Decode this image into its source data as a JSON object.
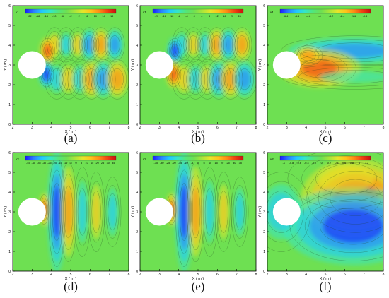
{
  "panels": [
    {
      "caption": "(a)",
      "colorbar_title": "v1",
      "colorbar_ticks": [
        "-22",
        "-18",
        "-14",
        "-10",
        "-6",
        "-2",
        "2",
        "6",
        "10",
        "14",
        "18"
      ],
      "xlabel": "X ( m )",
      "ylabel": "Y ( m )",
      "xticks": [
        "2",
        "3",
        "4",
        "5",
        "6",
        "7",
        "8"
      ],
      "yticks": [
        "0",
        "1",
        "2",
        "3",
        "4",
        "5",
        "6"
      ],
      "field": "wake-blobs"
    },
    {
      "caption": "(b)",
      "colorbar_title": "v1",
      "colorbar_ticks": [
        "-20",
        "-16",
        "-12",
        "-8",
        "-4",
        "0",
        "4",
        "8",
        "12",
        "16",
        "20",
        "24"
      ],
      "xlabel": "X ( m )",
      "ylabel": "Y ( m )",
      "xticks": [
        "2",
        "3",
        "4",
        "5",
        "6",
        "7",
        "8"
      ],
      "yticks": [
        "0",
        "1",
        "2",
        "3",
        "4",
        "5",
        "6"
      ],
      "field": "wake-blobs-b"
    },
    {
      "caption": "(c)",
      "colorbar_title": "v1",
      "colorbar_ticks": [
        "-6.4",
        "-5.6",
        "-4.8",
        "-4",
        "-3.2",
        "-2.4",
        "-1.6",
        "-0.8"
      ],
      "xlabel": "X ( m )",
      "ylabel": "Y ( m )",
      "xticks": [
        "2",
        "3",
        "4",
        "5",
        "6",
        "7",
        "8"
      ],
      "yticks": [
        "0",
        "1",
        "2",
        "3",
        "4",
        "5",
        "6"
      ],
      "field": "wake-jet"
    },
    {
      "caption": "(d)",
      "colorbar_title": "v2",
      "colorbar_ticks": [
        "-45",
        "-40",
        "-35",
        "-30",
        "-25",
        "-20",
        "-15",
        "-10",
        "-5",
        "0",
        "5",
        "10",
        "15",
        "20",
        "25",
        "30",
        "35"
      ],
      "xlabel": "X ( m )",
      "ylabel": "Y ( m )",
      "xticks": [
        "2",
        "3",
        "4",
        "5",
        "6",
        "7",
        "8"
      ],
      "yticks": [
        "0",
        "1",
        "2",
        "3",
        "4",
        "5",
        "6"
      ],
      "field": "vertical-bands"
    },
    {
      "caption": "(e)",
      "colorbar_title": "v2",
      "colorbar_ticks": [
        "-35",
        "-30",
        "-25",
        "-20",
        "-15",
        "-10",
        "-5",
        "0",
        "5",
        "10",
        "15",
        "20",
        "25",
        "30",
        "35"
      ],
      "xlabel": "X ( m )",
      "ylabel": "Y ( m )",
      "xticks": [
        "2",
        "3",
        "4",
        "5",
        "6",
        "7",
        "8"
      ],
      "yticks": [
        "0",
        "1",
        "2",
        "3",
        "4",
        "5",
        "6"
      ],
      "field": "vertical-bands-e"
    },
    {
      "caption": "(f)",
      "colorbar_title": "v2",
      "colorbar_ticks": [
        "-1",
        "-0.8",
        "-0.6",
        "-0.4",
        "-0.2",
        "0",
        "0.2",
        "0.4",
        "0.6",
        "0.8",
        "1",
        "1.2"
      ],
      "xlabel": "X ( m )",
      "ylabel": "Y ( m )",
      "xticks": [
        "2",
        "3",
        "4",
        "5",
        "6",
        "7",
        "8"
      ],
      "yticks": [
        "0",
        "1",
        "2",
        "3",
        "4",
        "5",
        "6"
      ],
      "field": "dipole"
    }
  ],
  "colormap": [
    "#1a1aff",
    "#2a7fff",
    "#22c8ff",
    "#34e6c8",
    "#52e67a",
    "#6ee052",
    "#a8e63a",
    "#e6e62a",
    "#ffc21a",
    "#ff8a14",
    "#f04010",
    "#c81010"
  ],
  "background_color": "#6ee052"
}
